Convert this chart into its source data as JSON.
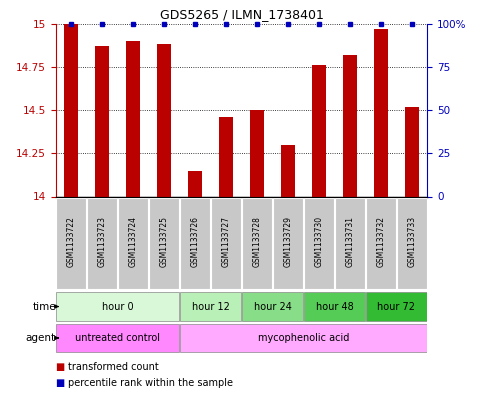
{
  "title": "GDS5265 / ILMN_1738401",
  "samples": [
    "GSM1133722",
    "GSM1133723",
    "GSM1133724",
    "GSM1133725",
    "GSM1133726",
    "GSM1133727",
    "GSM1133728",
    "GSM1133729",
    "GSM1133730",
    "GSM1133731",
    "GSM1133732",
    "GSM1133733"
  ],
  "bar_values": [
    15.0,
    14.87,
    14.9,
    14.88,
    14.15,
    14.46,
    14.5,
    14.3,
    14.76,
    14.82,
    14.97,
    14.52
  ],
  "percentile_values": [
    100,
    100,
    100,
    100,
    100,
    100,
    100,
    100,
    100,
    100,
    100,
    100
  ],
  "bar_color": "#bb0000",
  "percentile_color": "#0000bb",
  "ylim_low": 14.0,
  "ylim_high": 15.0,
  "yticks": [
    14.0,
    14.25,
    14.5,
    14.75,
    15.0
  ],
  "ytick_labels": [
    "14",
    "14.25",
    "14.5",
    "14.75",
    "15"
  ],
  "right_yticks": [
    0,
    25,
    50,
    75,
    100
  ],
  "right_ytick_labels": [
    "0",
    "25",
    "50",
    "75",
    "100%"
  ],
  "time_groups": [
    {
      "label": "hour 0",
      "start": 0,
      "end": 4,
      "color": "#d8f8d8"
    },
    {
      "label": "hour 12",
      "start": 4,
      "end": 6,
      "color": "#b8f0b8"
    },
    {
      "label": "hour 24",
      "start": 6,
      "end": 8,
      "color": "#88dd88"
    },
    {
      "label": "hour 48",
      "start": 8,
      "end": 10,
      "color": "#55cc55"
    },
    {
      "label": "hour 72",
      "start": 10,
      "end": 12,
      "color": "#33bb33"
    }
  ],
  "agent_groups": [
    {
      "label": "untreated control",
      "start": 0,
      "end": 4,
      "color": "#ff88ff"
    },
    {
      "label": "mycophenolic acid",
      "start": 4,
      "end": 12,
      "color": "#ffaaff"
    }
  ],
  "legend_bar_label": "transformed count",
  "legend_pct_label": "percentile rank within the sample",
  "bar_color_legend": "#bb0000",
  "percentile_color_legend": "#0000bb"
}
